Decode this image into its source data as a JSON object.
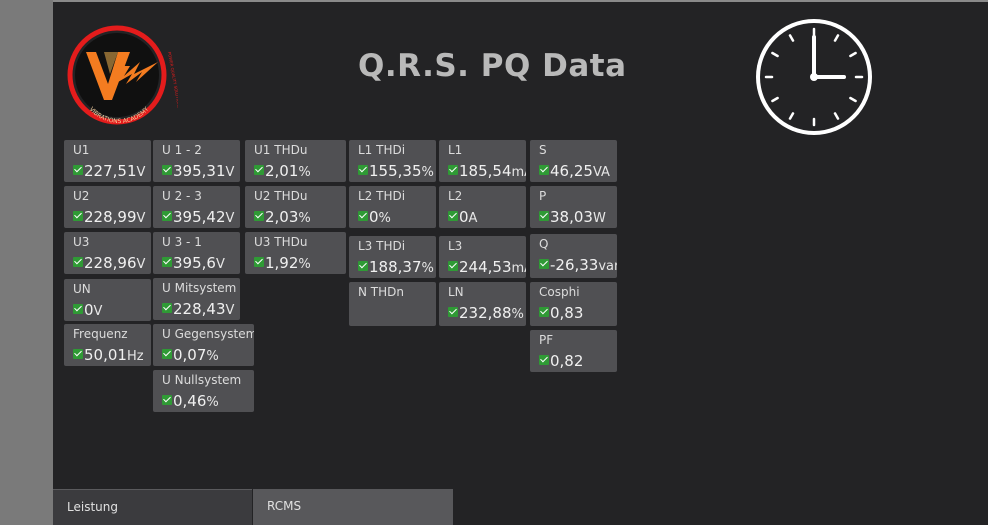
{
  "title": "Q.R.S. PQ Data",
  "logo": {
    "ring_text": "VIBRATIONS ACADEMY",
    "side_text": "POWER QUALITY SOLUTIONS",
    "ring_color": "#e41c1c",
    "mark_color": "#f47c20"
  },
  "clock": {
    "icon": "clock-icon",
    "time": "3:00"
  },
  "colors": {
    "ok": "#2f9a35",
    "tile": "#505053",
    "background": "#232325"
  },
  "tiles": [
    {
      "id": "u1",
      "label": "U1",
      "value": "227,51",
      "unit": "V"
    },
    {
      "id": "u2",
      "label": "U2",
      "value": "228,99",
      "unit": "V"
    },
    {
      "id": "u3",
      "label": "U3",
      "value": "228,96",
      "unit": "V"
    },
    {
      "id": "un",
      "label": "UN",
      "value": "0",
      "unit": "V"
    },
    {
      "id": "frequenz",
      "label": "Frequenz",
      "value": "50,01",
      "unit": "Hz"
    },
    {
      "id": "u12",
      "label": "U 1 - 2",
      "value": "395,31",
      "unit": "V"
    },
    {
      "id": "u23",
      "label": "U 2 - 3",
      "value": "395,42",
      "unit": "V"
    },
    {
      "id": "u31",
      "label": "U 3 - 1",
      "value": "395,6",
      "unit": "V"
    },
    {
      "id": "umit",
      "label": "U Mitsystem",
      "value": "228,43",
      "unit": "V"
    },
    {
      "id": "ugegen",
      "label": "U Gegensystem",
      "value": "0,07",
      "unit": "%"
    },
    {
      "id": "unull",
      "label": "U Nullsystem",
      "value": "0,46",
      "unit": "%"
    },
    {
      "id": "u1thdu",
      "label": "U1 THDu",
      "value": "2,01",
      "unit": "%"
    },
    {
      "id": "u2thdu",
      "label": "U2 THDu",
      "value": "2,03",
      "unit": "%"
    },
    {
      "id": "u3thdu",
      "label": "U3 THDu",
      "value": "1,92",
      "unit": "%"
    },
    {
      "id": "l1thdi",
      "label": "L1 THDi",
      "value": "155,35",
      "unit": "%"
    },
    {
      "id": "l2thdi",
      "label": "L2 THDi",
      "value": "0",
      "unit": "%"
    },
    {
      "id": "l3thdi",
      "label": "L3 THDi",
      "value": "188,37",
      "unit": "%"
    },
    {
      "id": "nthdn",
      "label": "N THDn",
      "value": "",
      "unit": ""
    },
    {
      "id": "l1",
      "label": "L1",
      "value": "185,54",
      "unit": "mA"
    },
    {
      "id": "l2",
      "label": "L2",
      "value": "0",
      "unit": "A"
    },
    {
      "id": "l3",
      "label": "L3",
      "value": "244,53",
      "unit": "mA"
    },
    {
      "id": "ln",
      "label": "LN",
      "value": "232,88",
      "unit": "%"
    },
    {
      "id": "s",
      "label": "S",
      "value": "46,25",
      "unit": "VA"
    },
    {
      "id": "p",
      "label": "P",
      "value": "38,03",
      "unit": "W"
    },
    {
      "id": "q",
      "label": "Q",
      "value": "-26,33",
      "unit": "var"
    },
    {
      "id": "cosphi",
      "label": "Cosphi",
      "value": "0,83",
      "unit": ""
    },
    {
      "id": "pf",
      "label": "PF",
      "value": "0,82",
      "unit": ""
    }
  ],
  "tabs": [
    {
      "label": "Leistung"
    },
    {
      "label": "RCMS"
    }
  ]
}
